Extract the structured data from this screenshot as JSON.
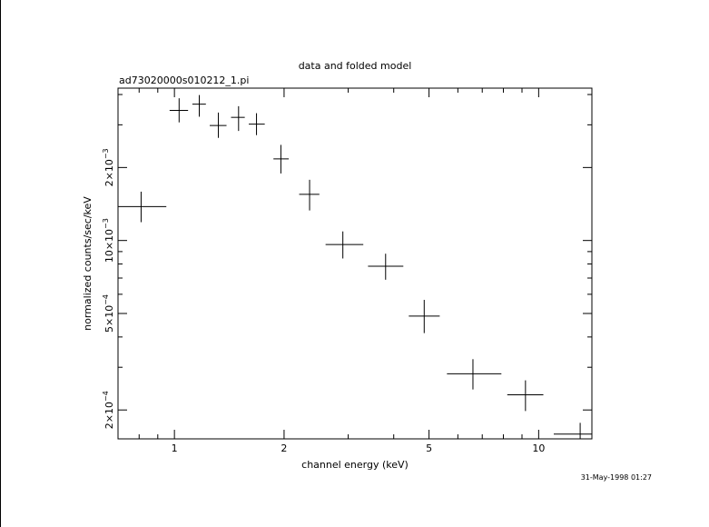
{
  "chart_data": {
    "type": "scatter",
    "title": "data and folded model",
    "subtitle": "ad73020000s010212_1.pi",
    "xlabel": "channel energy (keV)",
    "ylabel": "normalized counts/sec/keV",
    "timestamp": "31-May-1998 01:27",
    "xscale": "log",
    "yscale": "log",
    "xlim": [
      0.7,
      14.0
    ],
    "ylim": [
      0.000152,
      0.00425
    ],
    "x_ticks": [
      {
        "value": 1,
        "label": "1"
      },
      {
        "value": 2,
        "label": "2"
      },
      {
        "value": 5,
        "label": "5"
      },
      {
        "value": 10,
        "label": "10"
      }
    ],
    "y_ticks": [
      {
        "value": 0.0002,
        "mantissa": "2",
        "exponent": "−4"
      },
      {
        "value": 0.0005,
        "mantissa": "5",
        "exponent": "−4"
      },
      {
        "value": 0.001,
        "mantissa": "10",
        "exponent": "−3"
      },
      {
        "value": 0.002,
        "mantissa": "2",
        "exponent": "−3"
      }
    ],
    "series": [
      {
        "points": [
          {
            "x": 0.81,
            "xlo": 0.7,
            "xhi": 0.95,
            "y": 0.00138,
            "ylo": 0.00119,
            "yhi": 0.00159
          },
          {
            "x": 1.03,
            "xlo": 0.97,
            "xhi": 1.09,
            "y": 0.00344,
            "ylo": 0.00307,
            "yhi": 0.00386
          },
          {
            "x": 1.17,
            "xlo": 1.12,
            "xhi": 1.22,
            "y": 0.00365,
            "ylo": 0.00324,
            "yhi": 0.00398
          },
          {
            "x": 1.32,
            "xlo": 1.25,
            "xhi": 1.39,
            "y": 0.00298,
            "ylo": 0.00265,
            "yhi": 0.00337
          },
          {
            "x": 1.5,
            "xlo": 1.43,
            "xhi": 1.56,
            "y": 0.00322,
            "ylo": 0.00283,
            "yhi": 0.00358
          },
          {
            "x": 1.68,
            "xlo": 1.6,
            "xhi": 1.77,
            "y": 0.00302,
            "ylo": 0.00272,
            "yhi": 0.00335
          },
          {
            "x": 1.96,
            "xlo": 1.87,
            "xhi": 2.06,
            "y": 0.00217,
            "ylo": 0.00189,
            "yhi": 0.00248
          },
          {
            "x": 2.35,
            "xlo": 2.2,
            "xhi": 2.5,
            "y": 0.00155,
            "ylo": 0.00133,
            "yhi": 0.00178
          },
          {
            "x": 2.9,
            "xlo": 2.6,
            "xhi": 3.3,
            "y": 0.000962,
            "ylo": 0.000843,
            "yhi": 0.00109
          },
          {
            "x": 3.8,
            "xlo": 3.4,
            "xhi": 4.25,
            "y": 0.000783,
            "ylo": 0.000689,
            "yhi": 0.000882
          },
          {
            "x": 4.85,
            "xlo": 4.4,
            "xhi": 5.35,
            "y": 0.000488,
            "ylo": 0.000415,
            "yhi": 0.000569
          },
          {
            "x": 6.6,
            "xlo": 5.6,
            "xhi": 7.9,
            "y": 0.000282,
            "ylo": 0.000243,
            "yhi": 0.000324
          },
          {
            "x": 9.2,
            "xlo": 8.2,
            "xhi": 10.3,
            "y": 0.000231,
            "ylo": 0.000198,
            "yhi": 0.000265
          },
          {
            "x": 13.0,
            "xlo": 11.0,
            "xhi": 14.0,
            "y": 0.000159,
            "ylo": 0.000143,
            "yhi": 0.000177
          }
        ]
      }
    ]
  }
}
